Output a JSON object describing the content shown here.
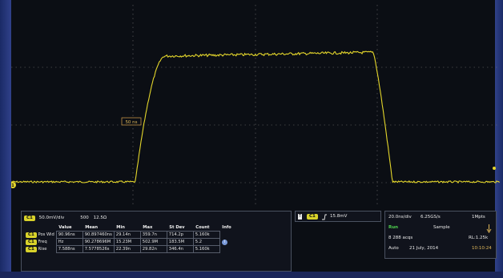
{
  "trace_color": "#e4d62b",
  "grid_color": "#7c7c7c",
  "cursor": {
    "label": "50 ns"
  },
  "channel": {
    "badge": "C1",
    "scale": "50.0mV/div",
    "bandwidth": "500",
    "impedance": "12.5Ω"
  },
  "measurements": {
    "columns": [
      "",
      "Value",
      "Mean",
      "Min",
      "Max",
      "St Dev",
      "Count",
      "Info"
    ],
    "rows": [
      {
        "name": "Pos Wid",
        "values": [
          "90.96ns",
          "90.897460ns",
          "29.14n",
          "359.7n",
          "714.2p",
          "5.160k"
        ]
      },
      {
        "name": "Freq",
        "values": [
          "Hz",
          "90.278696M",
          "15.23M",
          "502.9M",
          "183.5M",
          "5.2"
        ]
      },
      {
        "name": "Rise",
        "values": [
          "7.588ns",
          "7.5778526s",
          "22.39n",
          "29.82n",
          "346.4n",
          "5.160k"
        ]
      }
    ]
  },
  "trigger": {
    "badge": "C1",
    "level": "15.8mV",
    "icon": "rising-edge-icon"
  },
  "acquisition": {
    "timebase": "20.0ns/div",
    "sample_rate": "6.25GS/s",
    "record_length": "1Mpts",
    "mode": "Run",
    "sampling": "Sample",
    "acqs": "8 288 acqs",
    "rl": "RL:1.25k",
    "auto": "Auto",
    "date": "21 July, 2014",
    "time": "10:10:24"
  }
}
